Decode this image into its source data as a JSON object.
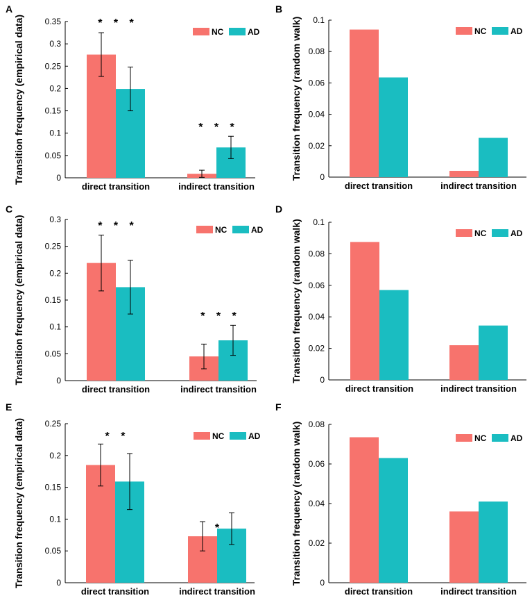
{
  "colors": {
    "NC": "#f7736d",
    "AD": "#1abdc1"
  },
  "chart_data": [
    {
      "panel": "A",
      "type": "bar",
      "ylabel": "Transition frequency (empirical data)",
      "ylim": [
        0,
        0.35
      ],
      "yticks": [
        0,
        0.05,
        0.1,
        0.15,
        0.2,
        0.25,
        0.3,
        0.35
      ],
      "ytick_labels": [
        "0",
        "0.05",
        "0.1",
        "0.15",
        "0.2",
        "0.25",
        "0.3",
        "0.35"
      ],
      "categories": [
        "direct transition",
        "indirect transition"
      ],
      "legend": [
        "NC",
        "AD"
      ],
      "series": [
        {
          "name": "NC",
          "values": [
            0.276,
            0.009
          ],
          "errors": [
            0.049,
            0.008
          ]
        },
        {
          "name": "AD",
          "values": [
            0.199,
            0.068
          ],
          "errors": [
            0.049,
            0.025
          ]
        }
      ],
      "significance": [
        "* * *",
        "* * *"
      ]
    },
    {
      "panel": "B",
      "type": "bar",
      "ylabel": "Transition frequency (random walk)",
      "ylim": [
        0,
        0.1
      ],
      "yticks": [
        0,
        0.02,
        0.04,
        0.06,
        0.08,
        0.1
      ],
      "ytick_labels": [
        "0",
        "0.02",
        "0.04",
        "0.06",
        "0.08",
        "0.1"
      ],
      "categories": [
        "direct transition",
        "indirect transition"
      ],
      "legend": [
        "NC",
        "AD"
      ],
      "series": [
        {
          "name": "NC",
          "values": [
            0.094,
            0.004
          ]
        },
        {
          "name": "AD",
          "values": [
            0.0635,
            0.025
          ]
        }
      ]
    },
    {
      "panel": "C",
      "type": "bar",
      "ylabel": "Transition frequency (empirical data)",
      "ylim": [
        0,
        0.3
      ],
      "yticks": [
        0,
        0.05,
        0.1,
        0.15,
        0.2,
        0.25,
        0.3
      ],
      "ytick_labels": [
        "0",
        "0.05",
        "0.1",
        "0.15",
        "0.2",
        "0.25",
        "0.3"
      ],
      "categories": [
        "direct transition",
        "indirect transition"
      ],
      "legend": [
        "NC",
        "AD"
      ],
      "series": [
        {
          "name": "NC",
          "values": [
            0.219,
            0.045
          ],
          "errors": [
            0.052,
            0.023
          ]
        },
        {
          "name": "AD",
          "values": [
            0.174,
            0.075
          ],
          "errors": [
            0.05,
            0.028
          ]
        }
      ],
      "significance": [
        "* * *",
        "* * *"
      ]
    },
    {
      "panel": "D",
      "type": "bar",
      "ylabel": "Transition frequency (random walk)",
      "ylim": [
        0,
        0.1
      ],
      "yticks": [
        0,
        0.02,
        0.04,
        0.06,
        0.08,
        0.1
      ],
      "ytick_labels": [
        "0",
        "0.02",
        "0.04",
        "0.06",
        "0.08",
        "0.1"
      ],
      "categories": [
        "direct transition",
        "indirect transition"
      ],
      "legend": [
        "NC",
        "AD"
      ],
      "series": [
        {
          "name": "NC",
          "values": [
            0.0875,
            0.022
          ]
        },
        {
          "name": "AD",
          "values": [
            0.057,
            0.0345
          ]
        }
      ]
    },
    {
      "panel": "E",
      "type": "bar",
      "ylabel": "Transition frequency (empirical data)",
      "ylim": [
        0,
        0.25
      ],
      "yticks": [
        0,
        0.05,
        0.1,
        0.15,
        0.2,
        0.25
      ],
      "ytick_labels": [
        "0",
        "0.05",
        "0.1",
        "0.15",
        "0.2",
        "0.25"
      ],
      "categories": [
        "direct transition",
        "indirect transition"
      ],
      "legend": [
        "NC",
        "AD"
      ],
      "series": [
        {
          "name": "NC",
          "values": [
            0.185,
            0.073
          ],
          "errors": [
            0.033,
            0.023
          ]
        },
        {
          "name": "AD",
          "values": [
            0.159,
            0.085
          ],
          "errors": [
            0.044,
            0.025
          ]
        }
      ],
      "significance": [
        "* *",
        "*"
      ]
    },
    {
      "panel": "F",
      "type": "bar",
      "ylabel": "Transition frequency (random walk)",
      "ylim": [
        0,
        0.08
      ],
      "yticks": [
        0,
        0.02,
        0.04,
        0.06,
        0.08
      ],
      "ytick_labels": [
        "0",
        "0.02",
        "0.04",
        "0.06",
        "0.08"
      ],
      "categories": [
        "direct transition",
        "indirect transition"
      ],
      "legend": [
        "NC",
        "AD"
      ],
      "series": [
        {
          "name": "NC",
          "values": [
            0.0735,
            0.036
          ]
        },
        {
          "name": "AD",
          "values": [
            0.063,
            0.041
          ]
        }
      ]
    }
  ]
}
